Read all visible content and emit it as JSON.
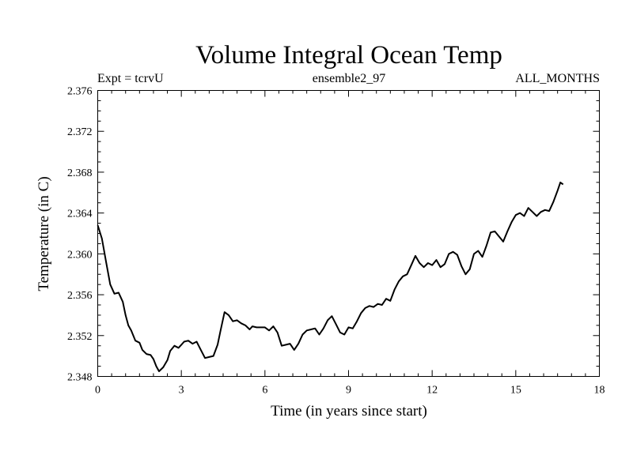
{
  "chart_data": {
    "type": "line",
    "title": "Volume Integral Ocean Temp",
    "header_left": "Expt = tcrvU",
    "header_center": "ensemble2_97",
    "header_right": "ALL_MONTHS",
    "xlabel": "Time (in years since start)",
    "ylabel": "Temperature (in C)",
    "xlim": [
      0,
      18
    ],
    "ylim": [
      2.348,
      2.376
    ],
    "x_ticks": [
      "0",
      "3",
      "6",
      "9",
      "12",
      "15",
      "18"
    ],
    "y_ticks": [
      "2.348",
      "2.352",
      "2.356",
      "2.360",
      "2.364",
      "2.368",
      "2.372",
      "2.376"
    ],
    "grid": false,
    "series": [
      {
        "name": "Volume Integral Ocean Temp",
        "color": "#000000",
        "x": [
          0.0,
          0.15,
          0.3,
          0.45,
          0.6,
          0.75,
          0.9,
          1.0,
          1.1,
          1.2,
          1.35,
          1.5,
          1.6,
          1.75,
          1.9,
          2.0,
          2.1,
          2.2,
          2.35,
          2.5,
          2.6,
          2.75,
          2.9,
          3.0,
          3.1,
          3.25,
          3.4,
          3.55,
          3.7,
          3.85,
          4.0,
          4.15,
          4.3,
          4.4,
          4.55,
          4.7,
          4.85,
          5.0,
          5.15,
          5.3,
          5.45,
          5.55,
          5.7,
          5.85,
          6.0,
          6.15,
          6.3,
          6.45,
          6.6,
          6.75,
          6.9,
          7.05,
          7.2,
          7.35,
          7.5,
          7.65,
          7.8,
          7.95,
          8.1,
          8.25,
          8.4,
          8.55,
          8.7,
          8.85,
          9.0,
          9.15,
          9.3,
          9.45,
          9.6,
          9.75,
          9.9,
          10.05,
          10.2,
          10.35,
          10.5,
          10.65,
          10.8,
          10.95,
          11.1,
          11.25,
          11.4,
          11.55,
          11.7,
          11.85,
          12.0,
          12.15,
          12.3,
          12.45,
          12.6,
          12.75,
          12.9,
          13.05,
          13.2,
          13.35,
          13.5,
          13.65,
          13.8,
          13.95,
          14.1,
          14.25,
          14.4,
          14.55,
          14.7,
          14.85,
          15.0,
          15.15,
          15.3,
          15.45,
          15.6,
          15.75,
          15.9,
          16.05,
          16.2,
          16.35,
          16.5,
          16.6,
          16.7
        ],
        "values": [
          2.3628,
          2.3615,
          2.3592,
          2.357,
          2.3561,
          2.3562,
          2.3553,
          2.354,
          2.353,
          2.3525,
          2.3515,
          2.3513,
          2.3506,
          2.3502,
          2.3501,
          2.3497,
          2.349,
          2.3485,
          2.3489,
          2.3496,
          2.3505,
          2.351,
          2.3508,
          2.3511,
          2.3514,
          2.3515,
          2.3512,
          2.3514,
          2.3506,
          2.3498,
          2.3499,
          2.35,
          2.3511,
          2.3524,
          2.3543,
          2.354,
          2.3534,
          2.3535,
          2.3532,
          2.353,
          2.3526,
          2.3529,
          2.3528,
          2.3528,
          2.3528,
          2.3525,
          2.3529,
          2.3523,
          2.351,
          2.3511,
          2.3512,
          2.3506,
          2.3512,
          2.3521,
          2.3525,
          2.3526,
          2.3527,
          2.3521,
          2.3527,
          2.3535,
          2.3539,
          2.3531,
          2.3523,
          2.3521,
          2.3528,
          2.3527,
          2.3534,
          2.3542,
          2.3547,
          2.3549,
          2.3548,
          2.3551,
          2.355,
          2.3556,
          2.3554,
          2.3565,
          2.3573,
          2.3578,
          2.358,
          2.3589,
          2.3598,
          2.3591,
          2.3587,
          2.3591,
          2.3589,
          2.3594,
          2.3587,
          2.359,
          2.36,
          2.3602,
          2.3599,
          2.3588,
          2.358,
          2.3585,
          2.36,
          2.3603,
          2.3597,
          2.3608,
          2.3621,
          2.3622,
          2.3617,
          2.3612,
          2.3622,
          2.3631,
          2.3638,
          2.364,
          2.3637,
          2.3645,
          2.3641,
          2.3637,
          2.3641,
          2.3643,
          2.3642,
          2.3651,
          2.3662,
          2.367,
          2.3668
        ]
      }
    ]
  }
}
